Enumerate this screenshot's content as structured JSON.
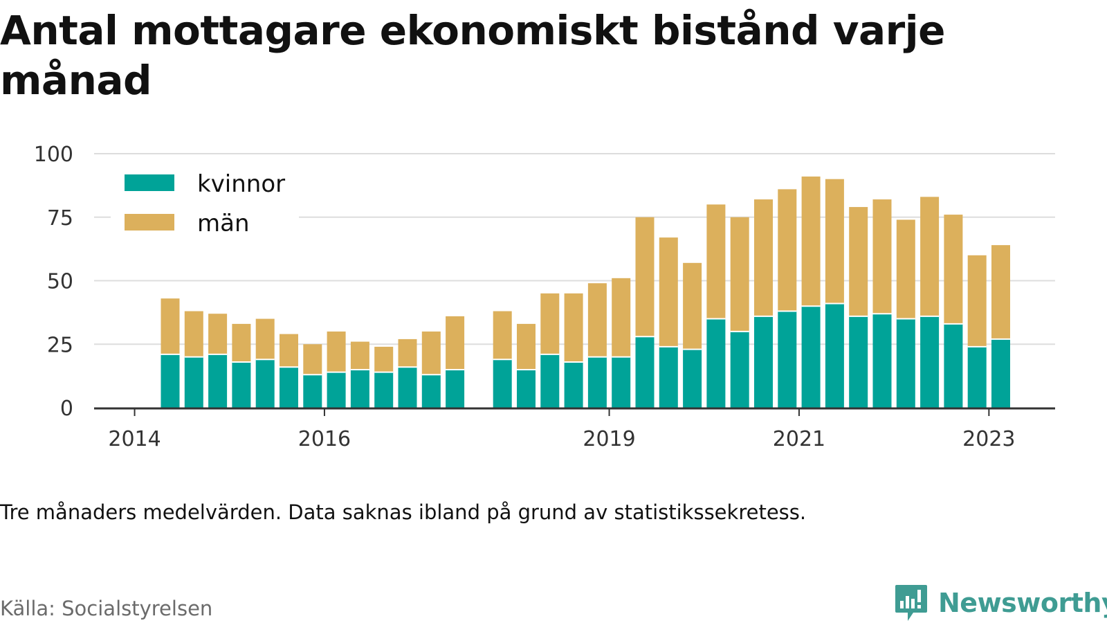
{
  "title": "Antal mottagare ekonomiskt bistånd varje månad",
  "note": "Tre månaders medelvärden. Data saknas ibland på grund av statistikssekretess.",
  "source": "Källa: Socialstyrelsen",
  "brand": {
    "name": "Newsworthy",
    "color": "#3f9c93"
  },
  "colors": {
    "kvinnor": "#00a398",
    "man": "#dcb05c",
    "grid": "#dddddd",
    "axis": "#333333"
  },
  "chart_data": {
    "type": "bar",
    "stacked": true,
    "title": "Antal mottagare ekonomiskt bistånd varje månad",
    "xlabel": "",
    "ylabel": "",
    "ylim": [
      0,
      100
    ],
    "yticks": [
      0,
      25,
      50,
      75,
      100
    ],
    "xticks": [
      {
        "label": "2014",
        "index": -1
      },
      {
        "label": "2016",
        "index": 7
      },
      {
        "label": "2019",
        "index": 19
      },
      {
        "label": "2021",
        "index": 27
      },
      {
        "label": "2023",
        "index": 35
      }
    ],
    "grid": true,
    "legend_position": "top-left",
    "categories": [
      "2014 Q2",
      "2014 Q3",
      "2014 Q4",
      "2015 Q1",
      "2015 Q2",
      "2015 Q3",
      "2015 Q4",
      "2016 Q1",
      "2016 Q2",
      "2016 Q3",
      "2016 Q4",
      "2017 Q1",
      "2017 Q2",
      "2017 Q3",
      "2017 Q4",
      "2018 Q1",
      "2018 Q2",
      "2018 Q3",
      "2018 Q4",
      "2019 Q1",
      "2019 Q2",
      "2019 Q3",
      "2019 Q4",
      "2020 Q1",
      "2020 Q2",
      "2020 Q3",
      "2020 Q4",
      "2021 Q1",
      "2021 Q2",
      "2021 Q3",
      "2021 Q4",
      "2022 Q1",
      "2022 Q2",
      "2022 Q3",
      "2022 Q4",
      "2023 Q1",
      "2023 Q2"
    ],
    "series": [
      {
        "name": "kvinnor",
        "values": [
          21,
          20,
          21,
          18,
          19,
          16,
          13,
          14,
          15,
          14,
          16,
          13,
          15,
          null,
          19,
          15,
          21,
          18,
          20,
          20,
          28,
          24,
          23,
          35,
          30,
          36,
          38,
          40,
          41,
          36,
          37,
          35,
          36,
          33,
          24,
          27,
          null
        ]
      },
      {
        "name": "män",
        "values": [
          22,
          18,
          16,
          15,
          16,
          13,
          12,
          16,
          11,
          10,
          11,
          17,
          21,
          null,
          19,
          18,
          24,
          27,
          29,
          31,
          47,
          43,
          34,
          45,
          45,
          46,
          48,
          51,
          49,
          43,
          45,
          39,
          47,
          43,
          36,
          37,
          null
        ]
      }
    ]
  }
}
